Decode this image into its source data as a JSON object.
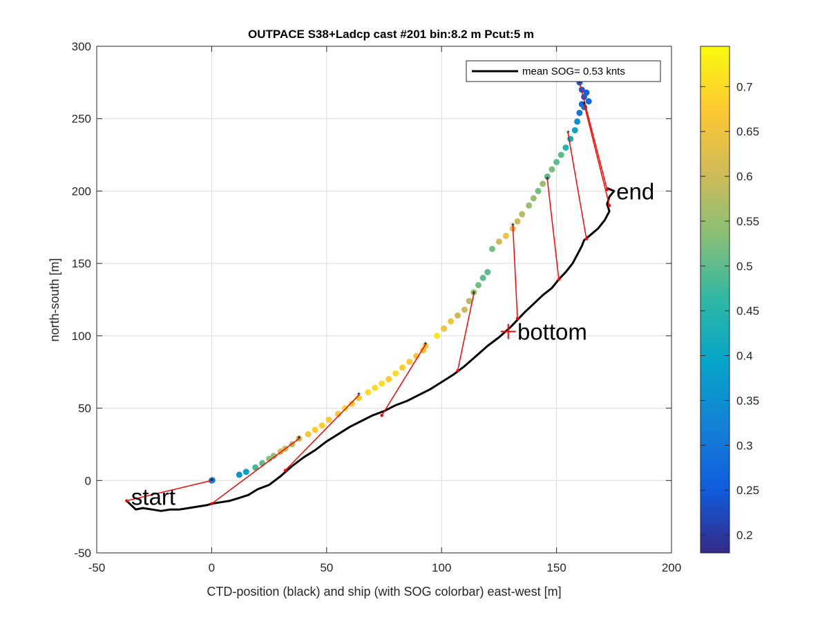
{
  "chart_data": {
    "type": "scatter",
    "title": "OUTPACE S38+Ladcp cast #201 bin:8.2 m  Pcut:5 m",
    "xlabel": "CTD-position (black) and ship (with SOG colorbar) east-west [m]",
    "ylabel": "north-south [m]",
    "xlim": [
      -50,
      200
    ],
    "ylim": [
      -50,
      300
    ],
    "xticks": [
      -50,
      0,
      50,
      100,
      150,
      200
    ],
    "yticks": [
      -50,
      0,
      50,
      100,
      150,
      200,
      250,
      300
    ],
    "xtick_labels": [
      "-50",
      "0",
      "50",
      "100",
      "150",
      "200"
    ],
    "ytick_labels": [
      "-50",
      "0",
      "50",
      "100",
      "150",
      "200",
      "250",
      "300"
    ],
    "grid": true,
    "legend": {
      "position": "top-right",
      "entries": [
        "mean SOG=  0.53 knts"
      ]
    },
    "colorbar": {
      "range": [
        0.18,
        0.745
      ],
      "ticks": [
        0.2,
        0.25,
        0.3,
        0.35,
        0.4,
        0.45,
        0.5,
        0.55,
        0.6,
        0.65,
        0.7
      ],
      "tick_labels": [
        "0.2",
        "0.25",
        "0.3",
        "0.35",
        "0.4",
        "0.45",
        "0.5",
        "0.55",
        "0.6",
        "0.65",
        "0.7"
      ],
      "colormap": [
        "#352a87",
        "#0f5cdd",
        "#1481d6",
        "#06a4ca",
        "#2eb7a4",
        "#87bf77",
        "#d1bb59",
        "#fec832",
        "#f9fb0e"
      ]
    },
    "annotations": [
      {
        "text": "start",
        "x": -35,
        "y": -11
      },
      {
        "text": "bottom",
        "x": 133,
        "y": 103
      },
      {
        "text": "end",
        "x": 176,
        "y": 200
      }
    ],
    "bottom_marker": {
      "x": 129,
      "y": 103
    },
    "series": [
      {
        "name": "ship",
        "points": [
          {
            "x": 0,
            "y": 0,
            "c": 0.33
          },
          {
            "x": 0.3,
            "y": 0.2,
            "c": 0.32
          },
          {
            "x": 12,
            "y": 4,
            "c": 0.36
          },
          {
            "x": 15,
            "y": 6,
            "c": 0.38
          },
          {
            "x": 19,
            "y": 9,
            "c": 0.48
          },
          {
            "x": 22,
            "y": 12,
            "c": 0.5
          },
          {
            "x": 25,
            "y": 15,
            "c": 0.53
          },
          {
            "x": 27,
            "y": 17,
            "c": 0.55
          },
          {
            "x": 30,
            "y": 20,
            "c": 0.6
          },
          {
            "x": 32,
            "y": 22,
            "c": 0.6
          },
          {
            "x": 35,
            "y": 25,
            "c": 0.58
          },
          {
            "x": 38,
            "y": 29,
            "c": 0.6
          },
          {
            "x": 42,
            "y": 32,
            "c": 0.66
          },
          {
            "x": 45,
            "y": 35,
            "c": 0.68
          },
          {
            "x": 48,
            "y": 38,
            "c": 0.68
          },
          {
            "x": 51,
            "y": 42,
            "c": 0.67
          },
          {
            "x": 55,
            "y": 46,
            "c": 0.67
          },
          {
            "x": 58,
            "y": 50,
            "c": 0.7
          },
          {
            "x": 61,
            "y": 53,
            "c": 0.67
          },
          {
            "x": 64,
            "y": 57,
            "c": 0.68
          },
          {
            "x": 68,
            "y": 61,
            "c": 0.7
          },
          {
            "x": 71,
            "y": 64,
            "c": 0.7
          },
          {
            "x": 74,
            "y": 67,
            "c": 0.7
          },
          {
            "x": 77,
            "y": 70,
            "c": 0.68
          },
          {
            "x": 80,
            "y": 74,
            "c": 0.7
          },
          {
            "x": 83,
            "y": 78,
            "c": 0.68
          },
          {
            "x": 86,
            "y": 82,
            "c": 0.68
          },
          {
            "x": 89,
            "y": 86,
            "c": 0.66
          },
          {
            "x": 92,
            "y": 90,
            "c": 0.65
          },
          {
            "x": 93,
            "y": 93,
            "c": 0.67
          },
          {
            "x": 98,
            "y": 100,
            "c": 0.72
          },
          {
            "x": 101,
            "y": 105,
            "c": 0.65
          },
          {
            "x": 104,
            "y": 110,
            "c": 0.65
          },
          {
            "x": 107,
            "y": 114,
            "c": 0.6
          },
          {
            "x": 110,
            "y": 118,
            "c": 0.6
          },
          {
            "x": 112,
            "y": 124,
            "c": 0.58
          },
          {
            "x": 114,
            "y": 130,
            "c": 0.55
          },
          {
            "x": 116,
            "y": 135,
            "c": 0.52
          },
          {
            "x": 118,
            "y": 140,
            "c": 0.5
          },
          {
            "x": 120,
            "y": 144,
            "c": 0.5
          },
          {
            "x": 122,
            "y": 160,
            "c": 0.52
          },
          {
            "x": 125,
            "y": 165,
            "c": 0.6
          },
          {
            "x": 128,
            "y": 169,
            "c": 0.65
          },
          {
            "x": 131,
            "y": 174,
            "c": 0.62
          },
          {
            "x": 133,
            "y": 179,
            "c": 0.6
          },
          {
            "x": 135,
            "y": 184,
            "c": 0.58
          },
          {
            "x": 138,
            "y": 190,
            "c": 0.55
          },
          {
            "x": 140,
            "y": 195,
            "c": 0.55
          },
          {
            "x": 142,
            "y": 200,
            "c": 0.52
          },
          {
            "x": 144,
            "y": 205,
            "c": 0.55
          },
          {
            "x": 146,
            "y": 210,
            "c": 0.5
          },
          {
            "x": 148,
            "y": 215,
            "c": 0.52
          },
          {
            "x": 150,
            "y": 220,
            "c": 0.5
          },
          {
            "x": 152,
            "y": 225,
            "c": 0.5
          },
          {
            "x": 154,
            "y": 230,
            "c": 0.45
          },
          {
            "x": 156,
            "y": 236,
            "c": 0.42
          },
          {
            "x": 158,
            "y": 242,
            "c": 0.4
          },
          {
            "x": 159,
            "y": 248,
            "c": 0.35
          },
          {
            "x": 160,
            "y": 254,
            "c": 0.3
          },
          {
            "x": 161,
            "y": 260,
            "c": 0.28
          },
          {
            "x": 162,
            "y": 265,
            "c": 0.26
          },
          {
            "x": 161,
            "y": 270,
            "c": 0.25
          },
          {
            "x": 160,
            "y": 275,
            "c": 0.27
          },
          {
            "x": 163,
            "y": 268,
            "c": 0.26
          },
          {
            "x": 164,
            "y": 262,
            "c": 0.28
          },
          {
            "x": 162,
            "y": 258,
            "c": 0.3
          }
        ]
      },
      {
        "name": "CTD",
        "points": [
          [
            -37,
            -14
          ],
          [
            -35,
            -17
          ],
          [
            -33,
            -20
          ],
          [
            -30,
            -19
          ],
          [
            -26,
            -20
          ],
          [
            -22,
            -21
          ],
          [
            -18,
            -20
          ],
          [
            -14,
            -20
          ],
          [
            -10,
            -19
          ],
          [
            -6,
            -18
          ],
          [
            -2,
            -17
          ],
          [
            0,
            -16
          ],
          [
            4,
            -15
          ],
          [
            8,
            -14
          ],
          [
            12,
            -12
          ],
          [
            16,
            -10
          ],
          [
            20,
            -6
          ],
          [
            25,
            -3
          ],
          [
            30,
            3
          ],
          [
            35,
            10
          ],
          [
            40,
            16
          ],
          [
            45,
            21
          ],
          [
            50,
            27
          ],
          [
            55,
            32
          ],
          [
            60,
            37
          ],
          [
            65,
            41
          ],
          [
            70,
            45
          ],
          [
            75,
            48
          ],
          [
            80,
            52
          ],
          [
            85,
            55
          ],
          [
            90,
            59
          ],
          [
            95,
            63
          ],
          [
            100,
            68
          ],
          [
            105,
            73
          ],
          [
            110,
            79
          ],
          [
            115,
            86
          ],
          [
            120,
            93
          ],
          [
            125,
            99
          ],
          [
            130,
            106
          ],
          [
            133,
            111
          ],
          [
            136,
            116
          ],
          [
            140,
            122
          ],
          [
            144,
            128
          ],
          [
            148,
            133
          ],
          [
            151,
            139
          ],
          [
            154,
            144
          ],
          [
            157,
            150
          ],
          [
            159,
            156
          ],
          [
            161,
            162
          ],
          [
            162,
            166
          ],
          [
            165,
            170
          ],
          [
            168,
            174
          ],
          [
            171,
            180
          ],
          [
            173,
            186
          ],
          [
            172,
            191
          ],
          [
            173,
            196
          ],
          [
            175,
            200
          ],
          [
            172,
            202
          ]
        ]
      }
    ],
    "connections": [
      {
        "ship": [
          -37,
          -14
        ],
        "ctd": [
          0,
          0
        ]
      },
      {
        "ship": [
          0,
          -16
        ],
        "ctd": [
          38,
          29
        ]
      },
      {
        "ship": [
          32,
          7
        ],
        "ctd": [
          64,
          59
        ]
      },
      {
        "ship": [
          74,
          45
        ],
        "ctd": [
          93,
          94
        ]
      },
      {
        "ship": [
          107,
          76
        ],
        "ctd": [
          114,
          129
        ]
      },
      {
        "ship": [
          133,
          112
        ],
        "ctd": [
          131,
          176
        ]
      },
      {
        "ship": [
          151,
          139
        ],
        "ctd": [
          146,
          208
        ]
      },
      {
        "ship": [
          163,
          167
        ],
        "ctd": [
          155,
          240
        ]
      },
      {
        "ship": [
          173,
          190
        ],
        "ctd": [
          162,
          260
        ]
      },
      {
        "ship": [
          172,
          201
        ],
        "ctd": [
          160,
          275
        ]
      }
    ],
    "marker_points": [
      [
        0,
        0
      ],
      [
        38,
        29
      ],
      [
        64,
        59
      ],
      [
        93,
        94
      ],
      [
        114,
        129
      ],
      [
        131,
        176
      ],
      [
        146,
        208
      ],
      [
        155,
        240
      ],
      [
        162,
        260
      ],
      [
        160,
        275
      ]
    ]
  }
}
